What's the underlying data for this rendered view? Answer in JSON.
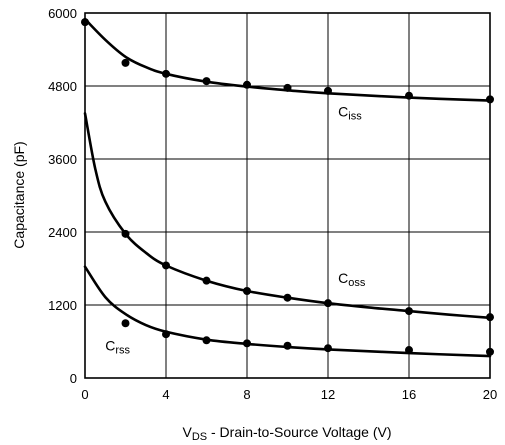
{
  "chart_data": {
    "type": "scatter",
    "xlabel_main": "V",
    "xlabel_sub": "DS",
    "xlabel_rest": " - Drain-to-Source Voltage (V)",
    "ylabel": "Capacitance (pF)",
    "xlim": [
      0,
      20
    ],
    "ylim": [
      0,
      6000
    ],
    "xticks": [
      "0",
      "4",
      "8",
      "12",
      "16",
      "20"
    ],
    "yticks": [
      "0",
      "1200",
      "2400",
      "3600",
      "4800",
      "6000"
    ],
    "grid": true,
    "series": [
      {
        "name": "Ciss",
        "label_main": "C",
        "label_sub": "iss",
        "x": [
          0,
          2,
          4,
          6,
          8,
          10,
          12,
          16,
          20
        ],
        "values": [
          5850,
          5180,
          5000,
          4880,
          4820,
          4770,
          4720,
          4640,
          4580
        ],
        "curve": [
          [
            0,
            5900
          ],
          [
            1,
            5560
          ],
          [
            2,
            5280
          ],
          [
            3,
            5110
          ],
          [
            4,
            5000
          ],
          [
            6,
            4870
          ],
          [
            8,
            4790
          ],
          [
            10,
            4730
          ],
          [
            12,
            4680
          ],
          [
            16,
            4610
          ],
          [
            20,
            4560
          ]
        ]
      },
      {
        "name": "Coss",
        "label_main": "C",
        "label_sub": "oss",
        "x": [
          2,
          4,
          6,
          8,
          10,
          12,
          16,
          20
        ],
        "values": [
          2370,
          1850,
          1600,
          1430,
          1320,
          1230,
          1100,
          1000
        ],
        "curve": [
          [
            0,
            4350
          ],
          [
            0.5,
            3450
          ],
          [
            1,
            2900
          ],
          [
            2,
            2370
          ],
          [
            3,
            2060
          ],
          [
            4,
            1850
          ],
          [
            6,
            1600
          ],
          [
            8,
            1430
          ],
          [
            10,
            1320
          ],
          [
            12,
            1230
          ],
          [
            14,
            1160
          ],
          [
            16,
            1100
          ],
          [
            18,
            1040
          ],
          [
            20,
            990
          ]
        ]
      },
      {
        "name": "Crss",
        "label_main": "C",
        "label_sub": "rss",
        "x": [
          2,
          4,
          6,
          8,
          10,
          12,
          16,
          20
        ],
        "values": [
          900,
          720,
          620,
          570,
          530,
          490,
          460,
          430
        ],
        "curve": [
          [
            0,
            1830
          ],
          [
            1,
            1330
          ],
          [
            2,
            1050
          ],
          [
            3,
            870
          ],
          [
            4,
            760
          ],
          [
            6,
            630
          ],
          [
            8,
            560
          ],
          [
            10,
            510
          ],
          [
            12,
            470
          ],
          [
            16,
            410
          ],
          [
            20,
            360
          ]
        ]
      }
    ]
  }
}
